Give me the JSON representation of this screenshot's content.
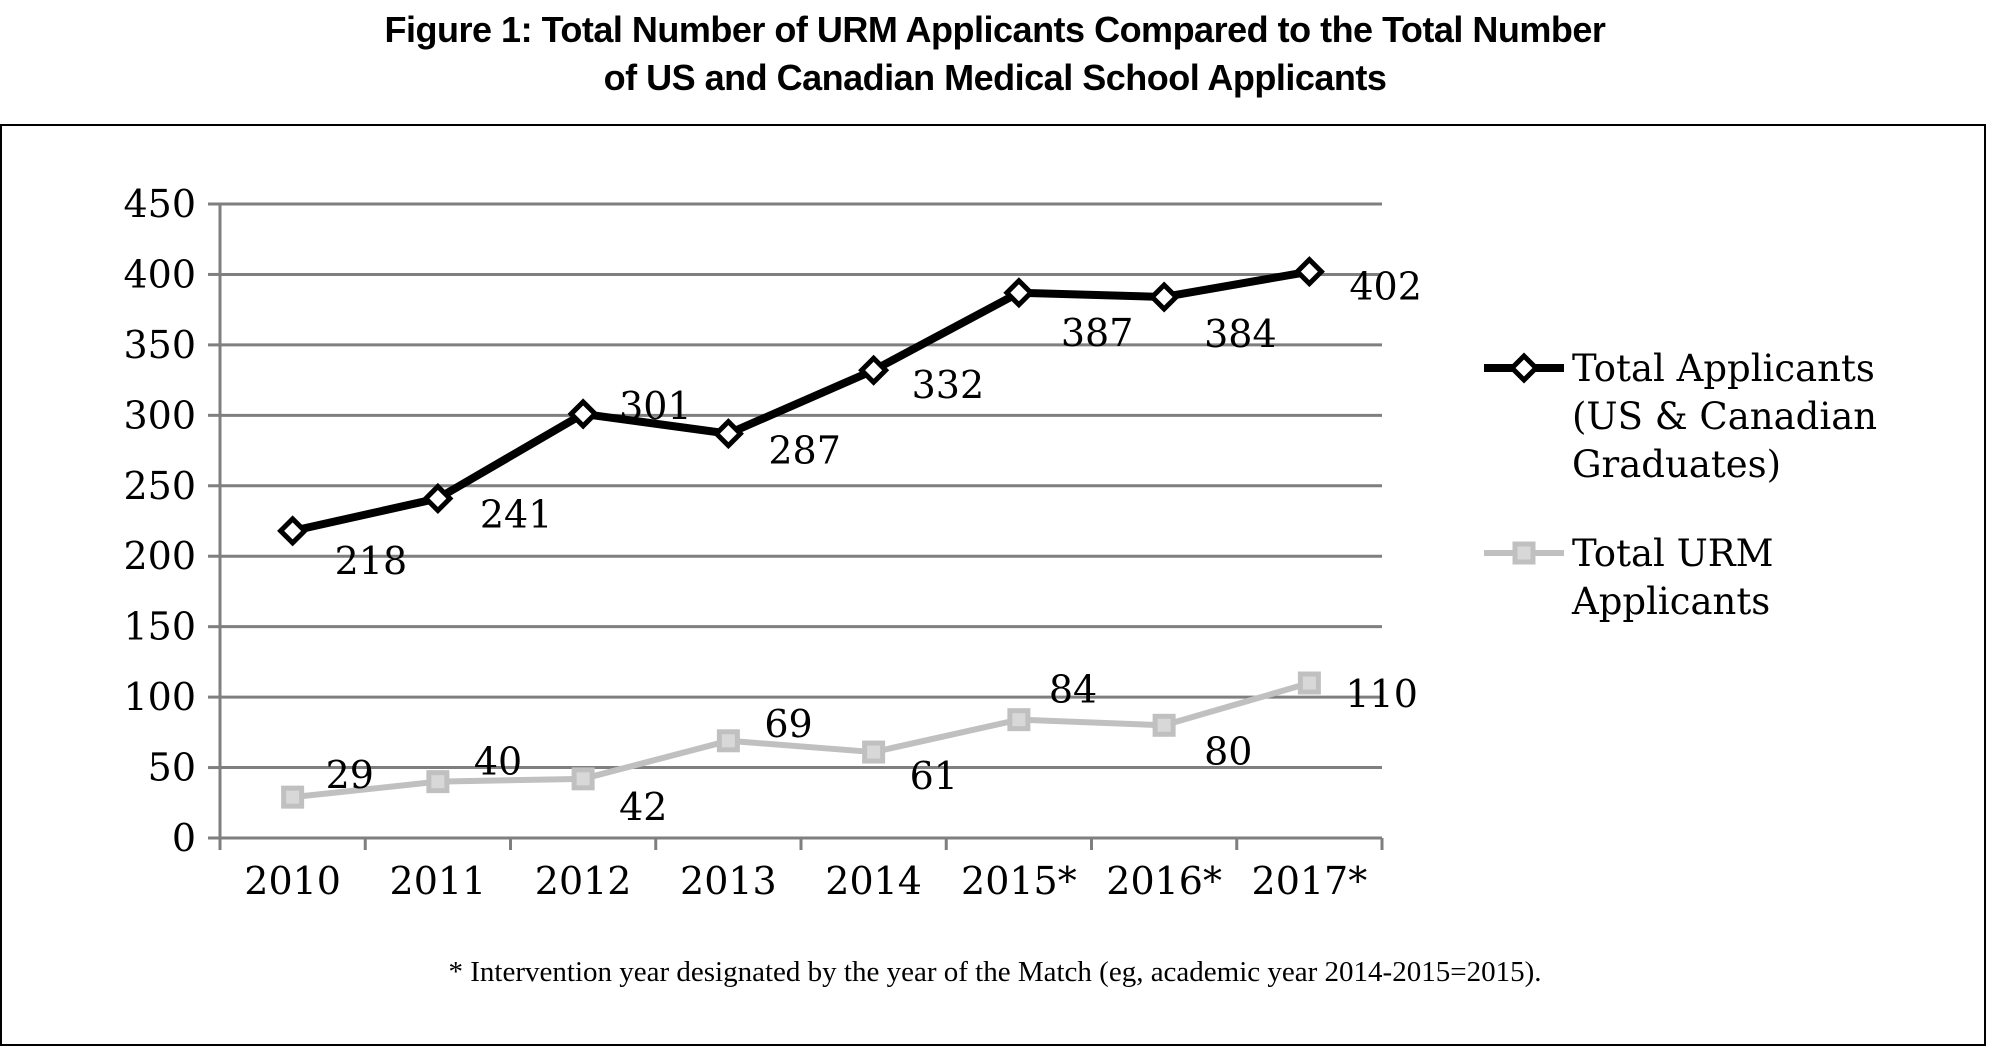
{
  "figure": {
    "title_line1": "Figure 1: Total Number of URM Applicants Compared to the Total Number",
    "title_line2": "of US and Canadian Medical School Applicants",
    "footnote": "* Intervention year designated by the year of the Match (eg, academic year 2014-2015=2015)."
  },
  "colors": {
    "total": "#000000",
    "urm": "#c0c0c0",
    "urm_marker_fill": "#d8d8d8",
    "gridline": "#7f7f7f"
  },
  "chart_data": {
    "type": "line",
    "categories": [
      "2010",
      "2011",
      "2012",
      "2013",
      "2014",
      "2015*",
      "2016*",
      "2017*"
    ],
    "ylim": [
      0,
      450
    ],
    "yticks": [
      0,
      50,
      100,
      150,
      200,
      250,
      300,
      350,
      400,
      450
    ],
    "grid": true,
    "legend_position": "right",
    "series": [
      {
        "name": "Total Applicants (US & Canadian Graduates)",
        "legend_lines": [
          "Total Applicants",
          "(US & Canadian",
          "Graduates)"
        ],
        "marker": "diamond",
        "values": [
          218,
          241,
          301,
          287,
          332,
          387,
          384,
          402
        ]
      },
      {
        "name": "Total URM Applicants",
        "legend_lines": [
          "Total URM",
          "Applicants"
        ],
        "marker": "square",
        "values": [
          29,
          40,
          42,
          69,
          61,
          84,
          80,
          110
        ]
      }
    ]
  }
}
